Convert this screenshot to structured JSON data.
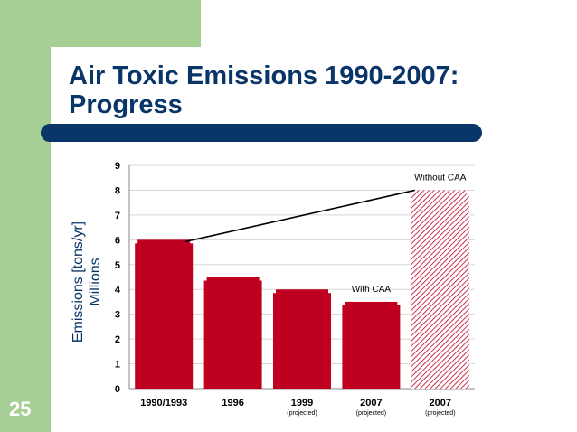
{
  "slide": {
    "title_line1": "Air Toxic Emissions 1990-2007:",
    "title_line2": "Progress",
    "number": "25"
  },
  "colors": {
    "brand_green": "#a5cf95",
    "navy": "#0a3569",
    "bar_red": "#c00020"
  },
  "chart_data": {
    "type": "bar",
    "ylabel_line1": "Emissions [tons/yr]",
    "ylabel_line2": "Millions",
    "ylim": [
      0,
      9
    ],
    "yticks": [
      0,
      1,
      2,
      3,
      4,
      5,
      6,
      7,
      8,
      9
    ],
    "grid": true,
    "categories": [
      {
        "label": "1990/1993",
        "sublabel": ""
      },
      {
        "label": "1996",
        "sublabel": ""
      },
      {
        "label": "1999",
        "sublabel": "(projected)"
      },
      {
        "label": "2007",
        "sublabel": "(projected)"
      },
      {
        "label": "2007",
        "sublabel": "(projected)"
      }
    ],
    "values": [
      6.0,
      4.5,
      4.0,
      3.5,
      8.0
    ],
    "bar_styles": [
      "solid",
      "solid",
      "solid",
      "solid",
      "hatched"
    ],
    "annotations": [
      {
        "text": "Without CAA",
        "category_index": 4,
        "value": 8.0
      },
      {
        "text": "With CAA",
        "category_index": 3,
        "value": 3.5
      }
    ],
    "trend_line": {
      "from_index": 0,
      "to_index": 4
    }
  }
}
